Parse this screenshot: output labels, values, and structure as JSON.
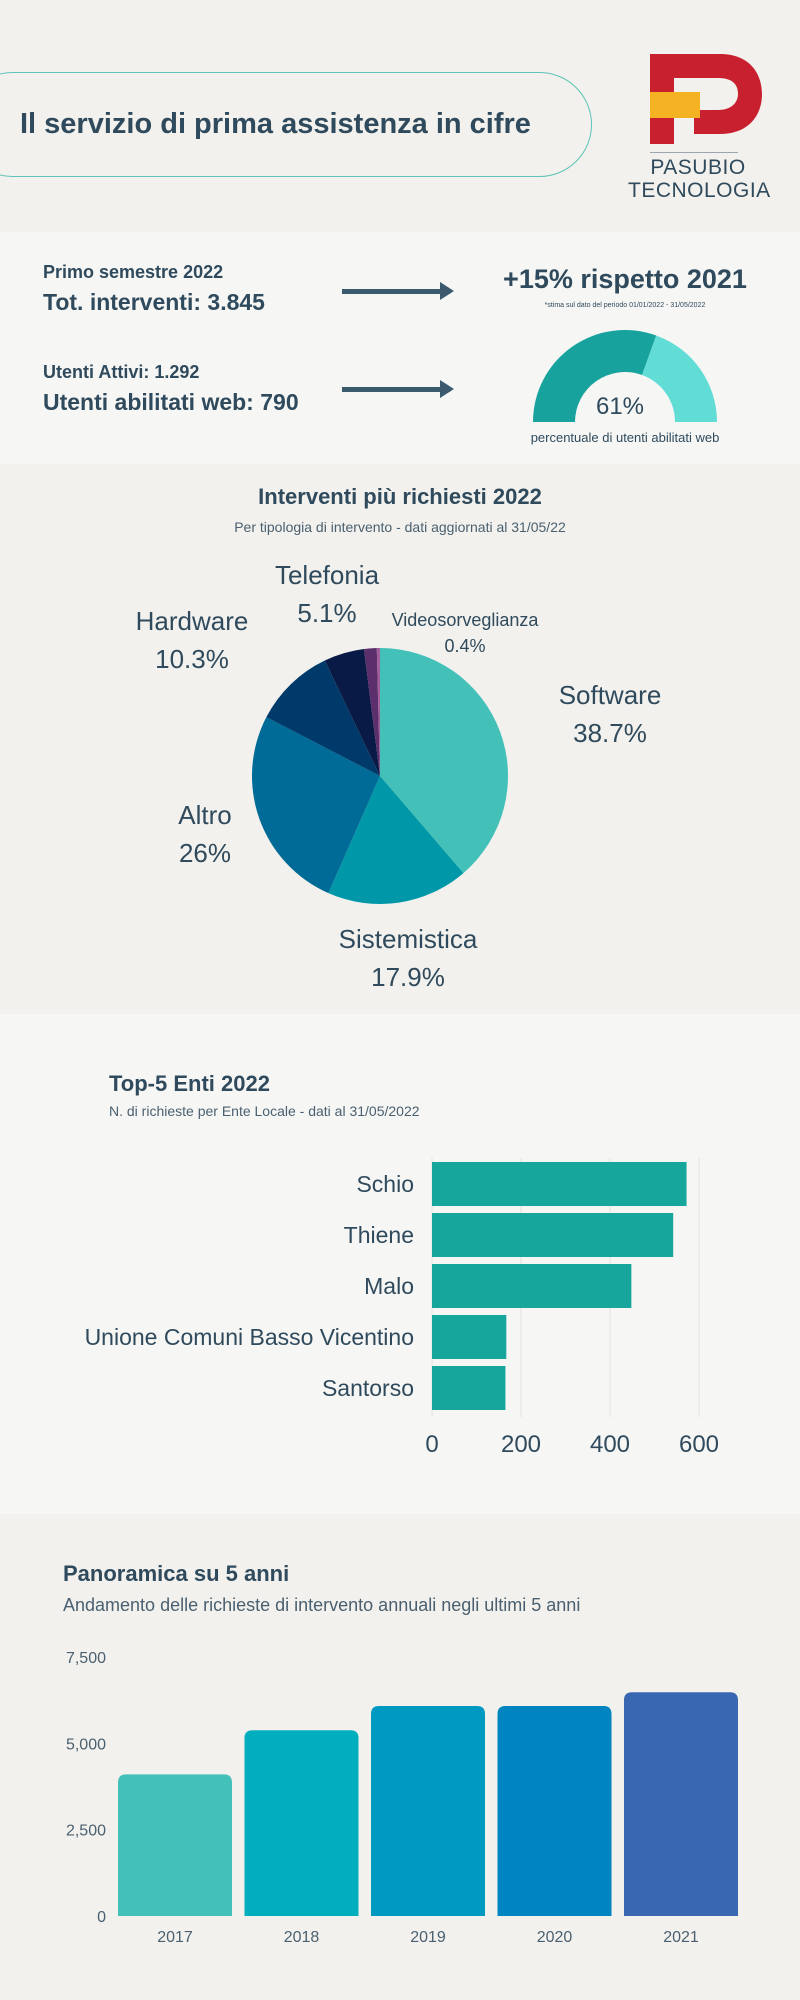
{
  "header": {
    "title": "Il servizio di prima assistenza  in cifre",
    "logo_line1": "PASUBIO",
    "logo_line2": "TECNOLOGIA",
    "logo_colors": {
      "red": "#c8202f",
      "yellow": "#f5b324"
    }
  },
  "kpi": {
    "period_label": "Primo semestre 2022",
    "total_interventions": "Tot. interventi:  3.845",
    "active_users": "Utenti Attivi: 1.292",
    "web_users": "Utenti abilitati web: 790",
    "growth": "+15% rispetto 2021",
    "growth_note": "*stima sul dato del periodo 01/01/2022 - 31/05/2022",
    "gauge_value": "61%",
    "gauge_fraction": 0.61,
    "gauge_caption": "percentuale di utenti abilitati web",
    "colors": {
      "gauge_fill": "#17a29d",
      "gauge_rest": "#62ddd6"
    }
  },
  "chart_data": [
    {
      "type": "pie",
      "title": "Interventi più richiesti 2022",
      "subtitle": "Per tipologia di intervento - dati aggiornati al 31/05/22",
      "slices": [
        {
          "label": "Software",
          "value": 38.7,
          "display": "38.7%",
          "color": "#43c1b9"
        },
        {
          "label": "Sistemistica",
          "value": 17.9,
          "display": "17.9%",
          "color": "#0098a8"
        },
        {
          "label": "Altro",
          "value": 26,
          "display": "26%",
          "color": "#006b96"
        },
        {
          "label": "Hardware",
          "value": 10.3,
          "display": "10.3%",
          "color": "#003a6a"
        },
        {
          "label": "Telefonia",
          "value": 5.1,
          "display": "5.1%",
          "color": "#081a45"
        },
        {
          "label": "",
          "value": 1.6,
          "display": "",
          "color": "#5b2f6b"
        },
        {
          "label": "Videosorveglianza",
          "value": 0.4,
          "display": "0.4%",
          "color": "#a25d9a"
        }
      ]
    },
    {
      "type": "bar",
      "orientation": "horizontal",
      "title": "Top-5 Enti 2022",
      "subtitle": "N. di richieste per Ente Locale - dati al 31/05/2022",
      "categories": [
        "Schio",
        "Thiene",
        "Malo",
        "Unione Comuni Basso Vicentino",
        "Santorso"
      ],
      "values": [
        572,
        542,
        448,
        167,
        165
      ],
      "xlim": [
        0,
        600
      ],
      "xticks": [
        "0",
        "200",
        "400",
        "600"
      ],
      "grid": true,
      "color": "#17a69c"
    },
    {
      "type": "bar",
      "title": "Panoramica su 5 anni",
      "subtitle": "Andamento delle richieste di intervento annuali negli ultimi 5 anni",
      "categories": [
        "2017",
        "2018",
        "2019",
        "2020",
        "2021"
      ],
      "values": [
        4100,
        5380,
        6080,
        6080,
        6480
      ],
      "ylim": [
        0,
        7500
      ],
      "yticks": [
        "0",
        "2,500",
        "5,000",
        "7,500"
      ],
      "colors": [
        "#43c1b9",
        "#00aebd",
        "#0099c2",
        "#0085c0",
        "#3a67b2"
      ]
    }
  ]
}
